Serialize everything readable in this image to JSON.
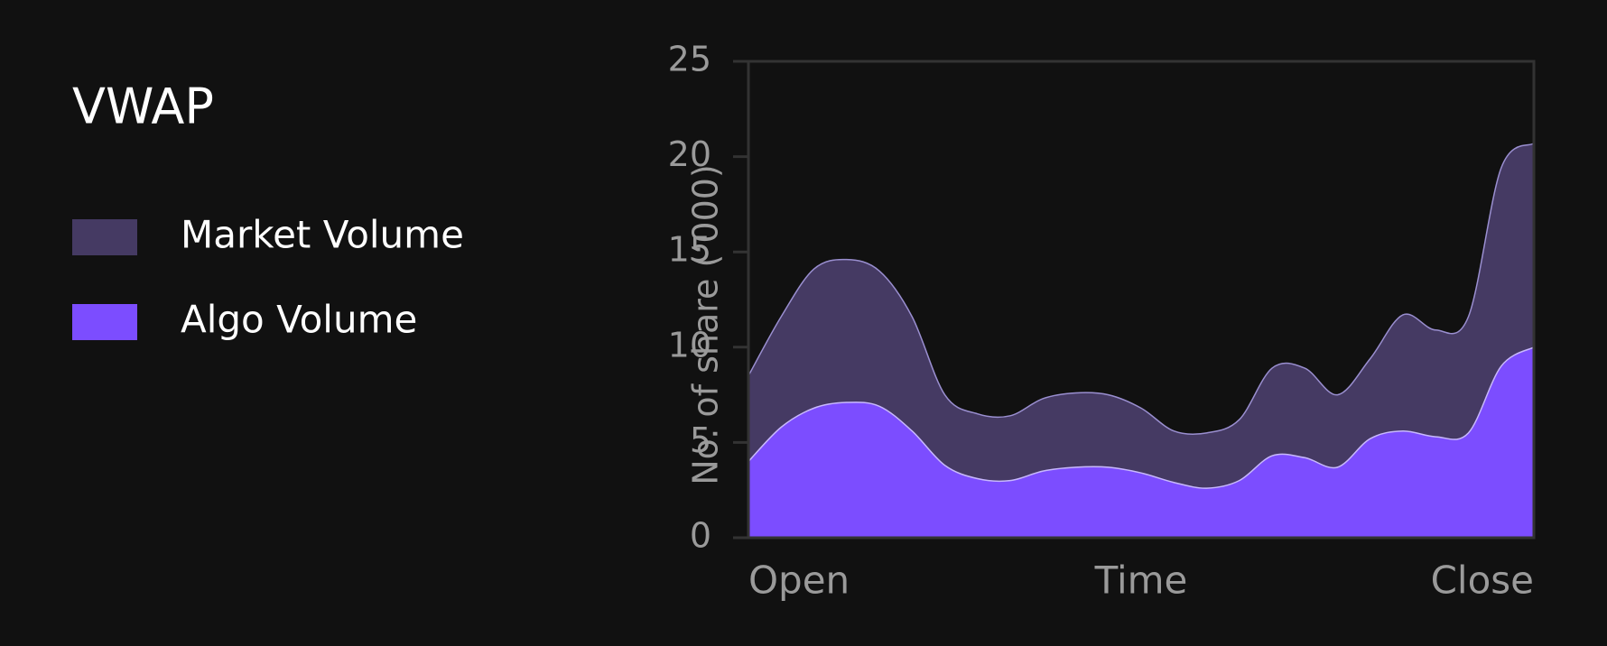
{
  "chart_data": {
    "type": "area",
    "title": "VWAP",
    "x_label": "Time",
    "y_label": "No. of share (‘000)",
    "categories": [
      "Open",
      null,
      null,
      null,
      null,
      null,
      null,
      null,
      null,
      null,
      null,
      null,
      null,
      null,
      null,
      null,
      null,
      null,
      null,
      null,
      null,
      null,
      null,
      null,
      "Close"
    ],
    "series": [
      {
        "name": "Market Volume",
        "color": "#453a63",
        "line_color": "#9a8fd0",
        "values": [
          8.5,
          11.6,
          14.1,
          14.6,
          14.0,
          11.6,
          7.5,
          6.5,
          6.4,
          7.3,
          7.6,
          7.5,
          6.8,
          5.6,
          5.5,
          6.2,
          8.9,
          8.9,
          7.5,
          9.4,
          11.7,
          10.9,
          11.6,
          19.4,
          20.7
        ]
      },
      {
        "name": "Algo Volume",
        "color": "#7c4dff",
        "line_color": "#c8b8ff",
        "values": [
          4.0,
          5.8,
          6.8,
          7.1,
          6.9,
          5.6,
          3.8,
          3.1,
          3.0,
          3.5,
          3.7,
          3.7,
          3.4,
          2.9,
          2.6,
          3.0,
          4.3,
          4.2,
          3.7,
          5.2,
          5.6,
          5.3,
          5.5,
          9.0,
          10.0
        ]
      }
    ],
    "ylim": [
      0,
      25
    ],
    "yticks": [
      0,
      5,
      10,
      15,
      20,
      25
    ],
    "grid": false,
    "legend": "left"
  }
}
